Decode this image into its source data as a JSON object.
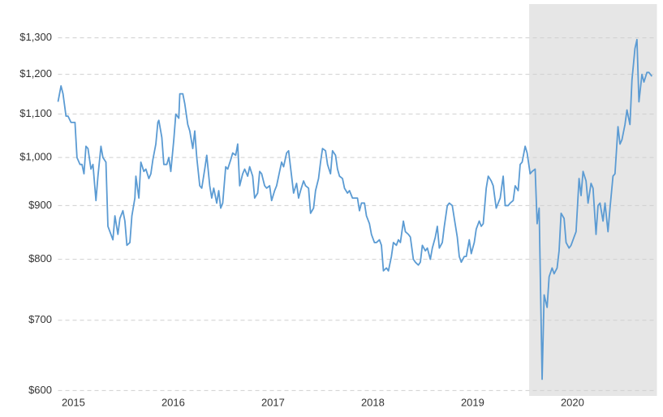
{
  "chart_data": {
    "type": "line",
    "yscale": "log",
    "grid": true,
    "color": "#5b9bd3",
    "shaded_region": {
      "x": [
        2019.7,
        2020.98
      ],
      "color": "#e6e6e6"
    },
    "xlim": [
      2014.98,
      2020.98
    ],
    "xticks": [
      2015,
      2016,
      2017,
      2018,
      2019,
      2020
    ],
    "ylim": [
      593,
      1400
    ],
    "yticks": [
      {
        "value": 600,
        "label": "$600"
      },
      {
        "value": 700,
        "label": "$700"
      },
      {
        "value": 800,
        "label": "$800"
      },
      {
        "value": 900,
        "label": "$900"
      },
      {
        "value": 1000,
        "label": "$1,000"
      },
      {
        "value": 1100,
        "label": "$1,100"
      },
      {
        "value": 1200,
        "label": "$1,200"
      },
      {
        "value": 1300,
        "label": "$1,300"
      }
    ],
    "x": [
      2014.98,
      2015.01,
      2015.03,
      2015.06,
      2015.08,
      2015.11,
      2015.15,
      2015.17,
      2015.2,
      2015.22,
      2015.24,
      2015.26,
      2015.28,
      2015.31,
      2015.33,
      2015.36,
      2015.38,
      2015.41,
      2015.43,
      2015.46,
      2015.48,
      2015.5,
      2015.53,
      2015.55,
      2015.58,
      2015.6,
      2015.63,
      2015.65,
      2015.67,
      2015.7,
      2015.72,
      2015.75,
      2015.76,
      2015.79,
      2015.81,
      2015.84,
      2015.86,
      2015.89,
      2015.91,
      2015.93,
      2015.96,
      2015.98,
      2015.99,
      2016.02,
      2016.04,
      2016.07,
      2016.09,
      2016.11,
      2016.14,
      2016.16,
      2016.19,
      2016.2,
      2016.23,
      2016.25,
      2016.28,
      2016.3,
      2016.33,
      2016.35,
      2016.37,
      2016.4,
      2016.42,
      2016.45,
      2016.47,
      2016.5,
      2016.52,
      2016.54,
      2016.57,
      2016.59,
      2016.61,
      2016.63,
      2016.66,
      2016.68,
      2016.71,
      2016.73,
      2016.76,
      2016.78,
      2016.8,
      2016.83,
      2016.85,
      2016.88,
      2016.9,
      2016.93,
      2016.95,
      2016.98,
      2017.0,
      2017.02,
      2017.05,
      2017.07,
      2017.1,
      2017.12,
      2017.15,
      2017.17,
      2017.2,
      2017.22,
      2017.24,
      2017.27,
      2017.29,
      2017.32,
      2017.34,
      2017.37,
      2017.39,
      2017.41,
      2017.44,
      2017.46,
      2017.49,
      2017.51,
      2017.54,
      2017.56,
      2017.59,
      2017.61,
      2017.63,
      2017.66,
      2017.68,
      2017.71,
      2017.73,
      2017.76,
      2017.78,
      2017.8,
      2017.83,
      2017.85,
      2017.88,
      2017.9,
      2017.93,
      2017.95,
      2017.98,
      2018.0,
      2018.02,
      2018.05,
      2018.07,
      2018.1,
      2018.12,
      2018.15,
      2018.17,
      2018.2,
      2018.22,
      2018.24,
      2018.27,
      2018.29,
      2018.32,
      2018.34,
      2018.37,
      2018.39,
      2018.41,
      2018.44,
      2018.46,
      2018.49,
      2018.51,
      2018.54,
      2018.56,
      2018.59,
      2018.61,
      2018.63,
      2018.66,
      2018.68,
      2018.71,
      2018.73,
      2018.76,
      2018.78,
      2018.8,
      2018.83,
      2018.85,
      2018.88,
      2018.9,
      2018.93,
      2018.95,
      2018.98,
      2019.0,
      2019.02,
      2019.05,
      2019.07,
      2019.1,
      2019.12,
      2019.15,
      2019.17,
      2019.2,
      2019.22,
      2019.24,
      2019.27,
      2019.29,
      2019.32,
      2019.34,
      2019.37,
      2019.39,
      2019.41,
      2019.44,
      2019.46,
      2019.49,
      2019.51,
      2019.54,
      2019.56,
      2019.59,
      2019.61,
      2019.63,
      2019.66,
      2019.68,
      2019.71,
      2019.73,
      2019.76,
      2019.78,
      2019.8,
      2019.83,
      2019.85,
      2019.88,
      2019.9,
      2019.93,
      2019.95,
      2019.98,
      2020.0,
      2020.02,
      2020.05,
      2020.07,
      2020.1,
      2020.12,
      2020.15,
      2020.17,
      2020.2,
      2020.22,
      2020.24,
      2020.27,
      2020.29,
      2020.32,
      2020.34,
      2020.37,
      2020.39,
      2020.41,
      2020.44,
      2020.46,
      2020.49,
      2020.51,
      2020.54,
      2020.56,
      2020.59,
      2020.61,
      2020.63,
      2020.66,
      2020.68,
      2020.71,
      2020.73,
      2020.76,
      2020.78,
      2020.8,
      2020.83,
      2020.85,
      2020.88,
      2020.9,
      2020.93
    ],
    "values": [
      1130,
      1170,
      1150,
      1095,
      1095,
      1080,
      1080,
      1000,
      985,
      985,
      965,
      1025,
      1020,
      975,
      985,
      910,
      960,
      1025,
      1000,
      990,
      860,
      850,
      835,
      880,
      845,
      875,
      890,
      870,
      825,
      830,
      880,
      915,
      960,
      915,
      990,
      970,
      975,
      955,
      965,
      995,
      1030,
      1080,
      1085,
      1045,
      985,
      985,
      1000,
      970,
      1040,
      1100,
      1090,
      1150,
      1150,
      1125,
      1075,
      1060,
      1020,
      1060,
      1000,
      940,
      935,
      975,
      1005,
      940,
      915,
      935,
      905,
      930,
      895,
      905,
      980,
      975,
      995,
      1010,
      1005,
      1030,
      940,
      965,
      975,
      960,
      980,
      960,
      915,
      925,
      970,
      965,
      940,
      935,
      940,
      910,
      930,
      940,
      970,
      990,
      980,
      1010,
      1015,
      960,
      925,
      945,
      915,
      930,
      950,
      940,
      935,
      885,
      895,
      930,
      955,
      990,
      1020,
      1015,
      985,
      965,
      1015,
      1005,
      975,
      960,
      955,
      935,
      925,
      930,
      915,
      915,
      915,
      890,
      905,
      905,
      880,
      865,
      845,
      830,
      830,
      835,
      825,
      780,
      785,
      780,
      805,
      830,
      825,
      835,
      830,
      870,
      850,
      845,
      840,
      800,
      795,
      790,
      795,
      825,
      815,
      820,
      800,
      820,
      840,
      860,
      820,
      830,
      860,
      900,
      905,
      900,
      875,
      840,
      805,
      795,
      805,
      805,
      835,
      810,
      830,
      855,
      870,
      860,
      865,
      935,
      960,
      950,
      940,
      895,
      905,
      915,
      960,
      900,
      900,
      905,
      910,
      940,
      930,
      985,
      990,
      1025,
      1010,
      965,
      970,
      975,
      865,
      895,
      615,
      740,
      720,
      770,
      785,
      775,
      785,
      815,
      885,
      875,
      830,
      820,
      825,
      840,
      850,
      955,
      920,
      970,
      950,
      905,
      945,
      935,
      845,
      900,
      905,
      870,
      905,
      850,
      895,
      960,
      965,
      1070,
      1030,
      1040,
      1075,
      1110,
      1075,
      1185,
      1270,
      1295,
      1130,
      1200,
      1180,
      1205,
      1205,
      1195
    ]
  }
}
